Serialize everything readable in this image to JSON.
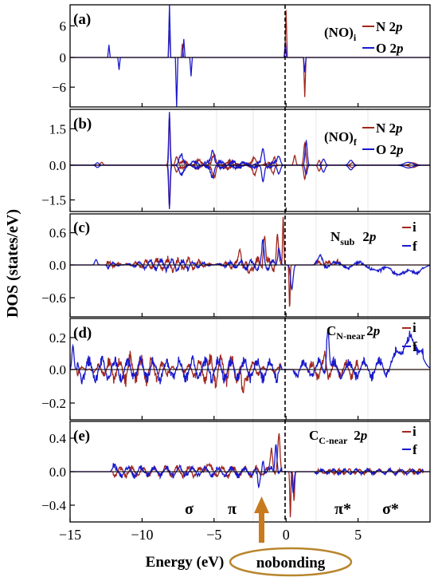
{
  "chart_data": [
    {
      "type": "line",
      "panel": "(a)",
      "species_main": "(NO)",
      "species_sub": "i",
      "xlim": [
        -15,
        10
      ],
      "ylim": [
        -10,
        10
      ],
      "yticks": [
        -6,
        0,
        6
      ],
      "series": [
        {
          "name": "N 2p",
          "color": "#a0281e",
          "peaks": [
            [
              -8.1,
              5.2
            ],
            [
              -7.2,
              2.6
            ],
            [
              0.0,
              9.0
            ],
            [
              1.3,
              -8.0
            ]
          ]
        },
        {
          "name": "O 2p",
          "color": "#1a1acc",
          "peaks": [
            [
              -12.3,
              2.4
            ],
            [
              -11.6,
              -2.5
            ],
            [
              -8.1,
              10.0
            ],
            [
              -7.6,
              -10.0
            ],
            [
              -7.1,
              3.5
            ],
            [
              -6.6,
              -3.8
            ],
            [
              -0.05,
              3.0
            ],
            [
              1.3,
              -3.0
            ]
          ]
        }
      ]
    },
    {
      "type": "line",
      "panel": "(b)",
      "species_main": "(NO)",
      "species_sub": "f",
      "xlim": [
        -15,
        10
      ],
      "ylim": [
        -2.0,
        2.3
      ],
      "yticks": [
        -1.5,
        -0.5,
        0.0,
        0.5,
        1.5
      ],
      "ytick_labels": [
        "-1.5",
        "",
        "0.0",
        "",
        "1.5"
      ],
      "yticks_shown": [
        -1.5,
        0.0,
        1.5
      ],
      "series": [
        {
          "name": "N 2p",
          "color": "#a0281e"
        },
        {
          "name": "O 2p",
          "color": "#1a1acc"
        }
      ]
    },
    {
      "type": "line",
      "panel": "(c)",
      "species_main": "N",
      "species_sub": "sub",
      "orbital": "2p",
      "xlim": [
        -15,
        10
      ],
      "ylim": [
        -0.95,
        0.95
      ],
      "yticks_shown": [
        -0.6,
        0.0,
        0.6
      ],
      "series": [
        {
          "name": "i",
          "color": "#a0281e"
        },
        {
          "name": "f",
          "color": "#1a1acc"
        }
      ]
    },
    {
      "type": "line",
      "panel": "(d)",
      "species_main": "C",
      "species_sub": "N-near",
      "orbital": "2p",
      "xlim": [
        -15,
        10
      ],
      "ylim": [
        -0.3,
        0.32
      ],
      "yticks_shown": [
        -0.2,
        0.0,
        0.2
      ],
      "series": [
        {
          "name": "i",
          "color": "#a0281e"
        },
        {
          "name": "f",
          "color": "#1a1acc"
        }
      ]
    },
    {
      "type": "line",
      "panel": "(e)",
      "species_main": "C",
      "species_sub": "C-near",
      "orbital": "2p",
      "xlim": [
        -15,
        10
      ],
      "ylim": [
        -0.6,
        0.6
      ],
      "yticks_shown": [
        -0.4,
        0.0,
        0.4
      ],
      "series": [
        {
          "name": "i",
          "color": "#a0281e"
        },
        {
          "name": "f",
          "color": "#1a1acc"
        }
      ]
    }
  ],
  "shared": {
    "xticks": [
      -15,
      -10,
      -5,
      0,
      5
    ],
    "xlabel": "Energy (eV)",
    "ylabel": "DOS (states/eV)",
    "fermi_level": 0,
    "annotations": [
      "σ",
      "π",
      "π*",
      "σ*"
    ],
    "nonbonding_label": "nobonding",
    "colors": {
      "red": "#a0281e",
      "blue": "#1a1acc",
      "arrow": "#c87a1e",
      "ellipse": "#b8862e"
    }
  },
  "labels": {
    "n2p": "N 2p",
    "o2p": "O 2p",
    "i": "i",
    "f": "f",
    "orb": "2p"
  }
}
